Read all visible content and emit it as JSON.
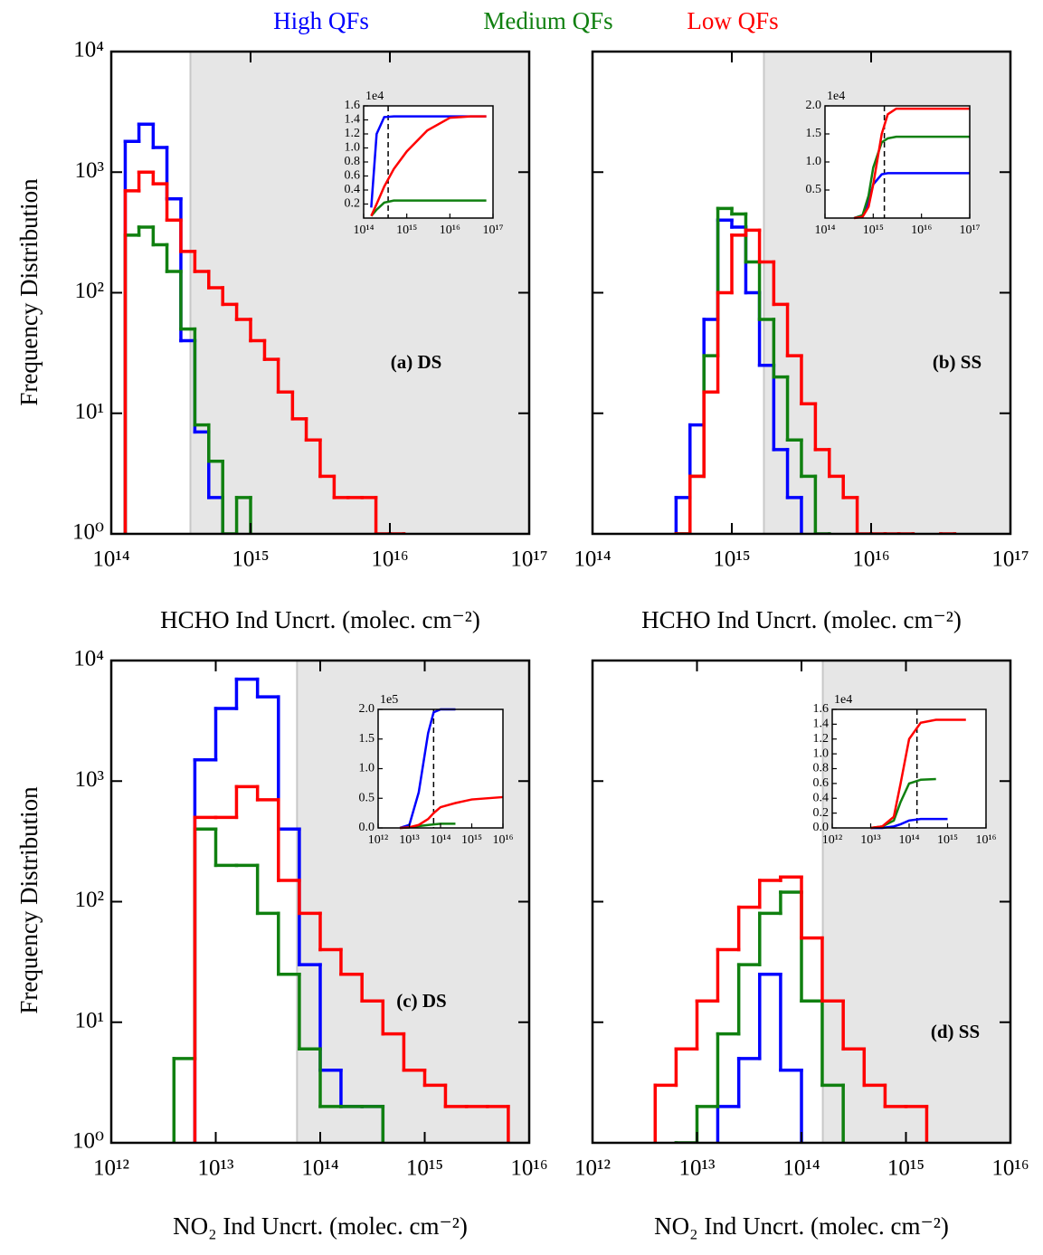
{
  "chart_data": [
    {
      "type": "histogram",
      "xscale": "log",
      "yscale": "log",
      "xlabel": "HCHO Ind Uncrt. (molec. cm⁻²)",
      "ylabel": "Frequency Distribution",
      "annotation": "(a) DS",
      "xlim": [
        100000000000000.0,
        1e+17
      ],
      "ylim": [
        1,
        10000
      ],
      "xticks": [
        {
          "value": 100000000000000.0,
          "label": "10¹⁴"
        },
        {
          "value": 1000000000000000.0,
          "label": "10¹⁵"
        },
        {
          "value": 1e+16,
          "label": "10¹⁶"
        },
        {
          "value": 1e+17,
          "label": "10¹⁷"
        }
      ],
      "yticks": [
        {
          "value": 1,
          "label": "10⁰"
        },
        {
          "value": 10,
          "label": "10¹"
        },
        {
          "value": 100,
          "label": "10²"
        },
        {
          "value": 1000,
          "label": "10³"
        },
        {
          "value": 10000,
          "label": "10⁴"
        }
      ],
      "shade_from": 370000000000000.0,
      "bins": [
        126000000000000.0,
        158000000000000.0,
        200000000000000.0,
        251000000000000.0,
        316000000000000.0,
        398000000000000.0,
        501000000000000.0,
        631000000000000.0,
        794000000000000.0,
        1000000000000000.0,
        1260000000000000.0,
        1580000000000000.0,
        2000000000000000.0,
        2510000000000000.0,
        3160000000000000.0,
        3980000000000000.0,
        5010000000000000.0,
        6310000000000000.0,
        7940000000000000.0,
        1e+16,
        1.26e+16,
        1.58e+16
      ],
      "series": [
        {
          "name": "High QFs",
          "color": "#0000ff",
          "values": [
            1800,
            2500,
            1600,
            600,
            40,
            7,
            2,
            null,
            null,
            null,
            null,
            null,
            null,
            null,
            null,
            null,
            null,
            null,
            null,
            null,
            null
          ]
        },
        {
          "name": "Medium QFs",
          "color": "#108010",
          "values": [
            300,
            350,
            250,
            150,
            50,
            8,
            4,
            1,
            2,
            null,
            null,
            null,
            null,
            null,
            null,
            null,
            null,
            null,
            null,
            null,
            null
          ]
        },
        {
          "name": "Low QFs",
          "color": "#ff0000",
          "values": [
            700,
            1000,
            800,
            400,
            220,
            150,
            110,
            80,
            60,
            40,
            28,
            15,
            9,
            6,
            3,
            2,
            2,
            2,
            1,
            1,
            null
          ]
        }
      ],
      "inset": {
        "xscale": "log",
        "xlim": [
          100000000000000.0,
          1e+17
        ],
        "ylim": [
          0,
          1.6
        ],
        "offset_label": "1e4",
        "threshold": 370000000000000.0,
        "xticks": [
          {
            "value": 100000000000000.0,
            "label": "10¹⁴"
          },
          {
            "value": 1000000000000000.0,
            "label": "10¹⁵"
          },
          {
            "value": 1e+16,
            "label": "10¹⁶"
          },
          {
            "value": 1e+17,
            "label": "10¹⁷"
          }
        ],
        "yticks": [
          0.2,
          0.4,
          0.6,
          0.8,
          {
            "value": 1,
            "label": "1.0"
          },
          1.2,
          1.4,
          1.6
        ],
        "x": [
          150000000000000.0,
          200000000000000.0,
          300000000000000.0,
          500000000000000.0,
          1000000000000000.0,
          3000000000000000.0,
          1e+16,
          3e+16,
          7e+16
        ],
        "series": [
          {
            "color": "#0000ff",
            "values": [
              0.15,
              1.2,
              1.44,
              1.45,
              1.45,
              1.45,
              1.45,
              1.45,
              1.45
            ]
          },
          {
            "color": "#108010",
            "values": [
              0.03,
              0.12,
              0.22,
              0.25,
              0.25,
              0.25,
              0.25,
              0.25,
              0.25
            ]
          },
          {
            "color": "#ff0000",
            "values": [
              0.03,
              0.2,
              0.45,
              0.7,
              0.95,
              1.25,
              1.43,
              1.45,
              1.45
            ]
          }
        ]
      }
    },
    {
      "type": "histogram",
      "xscale": "log",
      "yscale": "log",
      "xlabel": "HCHO Ind Uncrt. (molec. cm⁻²)",
      "annotation": "(b) SS",
      "xlim": [
        100000000000000.0,
        1e+17
      ],
      "ylim": [
        1,
        10000
      ],
      "xticks": [
        {
          "value": 100000000000000.0,
          "label": "10¹⁴"
        },
        {
          "value": 1000000000000000.0,
          "label": "10¹⁵"
        },
        {
          "value": 1e+16,
          "label": "10¹⁶"
        },
        {
          "value": 1e+17,
          "label": "10¹⁷"
        }
      ],
      "yticks": [
        1,
        10,
        100,
        1000,
        10000
      ],
      "show_ytick_labels": false,
      "shade_from": 1700000000000000.0,
      "bins": [
        398000000000000.0,
        501000000000000.0,
        631000000000000.0,
        794000000000000.0,
        1000000000000000.0,
        1260000000000000.0,
        1580000000000000.0,
        2000000000000000.0,
        2510000000000000.0,
        3160000000000000.0,
        3980000000000000.0,
        5010000000000000.0,
        6310000000000000.0,
        7940000000000000.0,
        1e+16,
        1.26e+16,
        1.58e+16,
        2e+16,
        2.51e+16,
        3.16e+16,
        3.98e+16
      ],
      "series": [
        {
          "name": "High QFs",
          "color": "#0000ff",
          "values": [
            2,
            8,
            60,
            400,
            350,
            100,
            25,
            5,
            2,
            null,
            null,
            null,
            null,
            null,
            null,
            null,
            null,
            null,
            null,
            null
          ]
        },
        {
          "name": "Medium QFs",
          "color": "#108010",
          "values": [
            1,
            3,
            30,
            500,
            450,
            180,
            60,
            20,
            6,
            3,
            1,
            null,
            null,
            null,
            null,
            null,
            null,
            null,
            null,
            null
          ]
        },
        {
          "name": "Low QFs",
          "color": "#ff0000",
          "values": [
            1,
            3,
            15,
            100,
            300,
            330,
            180,
            80,
            30,
            12,
            5,
            3,
            2,
            1,
            1,
            1,
            1,
            null,
            null,
            1
          ]
        }
      ],
      "inset": {
        "xscale": "log",
        "xlim": [
          100000000000000.0,
          1e+17
        ],
        "ylim": [
          0,
          2
        ],
        "offset_label": "1e4",
        "threshold": 1700000000000000.0,
        "xticks": [
          {
            "value": 100000000000000.0,
            "label": "10¹⁴"
          },
          {
            "value": 1000000000000000.0,
            "label": "10¹⁵"
          },
          {
            "value": 1e+16,
            "label": "10¹⁶"
          },
          {
            "value": 1e+17,
            "label": "10¹⁷"
          }
        ],
        "yticks": [
          0.5,
          {
            "value": 1,
            "label": "1.0"
          },
          1.5,
          {
            "value": 2,
            "label": "2.0"
          }
        ],
        "x": [
          400000000000000.0,
          600000000000000.0,
          800000000000000.0,
          1000000000000000.0,
          1500000000000000.0,
          2000000000000000.0,
          3000000000000000.0,
          1e+16,
          1e+17
        ],
        "series": [
          {
            "color": "#0000ff",
            "values": [
              0,
              0.05,
              0.3,
              0.6,
              0.78,
              0.8,
              0.8,
              0.8,
              0.8
            ]
          },
          {
            "color": "#108010",
            "values": [
              0,
              0.05,
              0.4,
              0.9,
              1.35,
              1.42,
              1.45,
              1.45,
              1.45
            ]
          },
          {
            "color": "#ff0000",
            "values": [
              0,
              0.02,
              0.2,
              0.6,
              1.5,
              1.85,
              1.95,
              1.95,
              1.95
            ]
          }
        ]
      }
    },
    {
      "type": "histogram",
      "xscale": "log",
      "yscale": "log",
      "xlabel": "NO₂ Ind Uncrt. (molec. cm⁻²)",
      "ylabel": "Frequency Distribution",
      "annotation": "(c) DS",
      "xlim": [
        1000000000000.0,
        1e+16
      ],
      "ylim": [
        1,
        10000
      ],
      "xticks": [
        {
          "value": 1000000000000.0,
          "label": "10¹²"
        },
        {
          "value": 10000000000000.0,
          "label": "10¹³"
        },
        {
          "value": 100000000000000.0,
          "label": "10¹⁴"
        },
        {
          "value": 1000000000000000.0,
          "label": "10¹⁵"
        },
        {
          "value": 1e+16,
          "label": "10¹⁶"
        }
      ],
      "yticks": [
        {
          "value": 1,
          "label": "10⁰"
        },
        {
          "value": 10,
          "label": "10¹"
        },
        {
          "value": 100,
          "label": "10²"
        },
        {
          "value": 1000,
          "label": "10³"
        },
        {
          "value": 10000,
          "label": "10⁴"
        }
      ],
      "shade_from": 60000000000000.0,
      "bins": [
        3980000000000.0,
        6310000000000.0,
        10000000000000.0,
        15800000000000.0,
        25100000000000.0,
        39800000000000.0,
        63100000000000.0,
        100000000000000.0,
        158000000000000.0,
        251000000000000.0,
        398000000000000.0,
        631000000000000.0,
        1000000000000000.0,
        1580000000000000.0,
        2510000000000000.0,
        3980000000000000.0,
        6310000000000000.0
      ],
      "series": [
        {
          "name": "High QFs",
          "color": "#0000ff",
          "values": [
            null,
            1500,
            4000,
            7000,
            5000,
            400,
            30,
            4,
            2,
            2,
            null,
            null,
            null,
            null,
            null,
            null
          ]
        },
        {
          "name": "Medium QFs",
          "color": "#108010",
          "values": [
            5,
            400,
            200,
            200,
            80,
            25,
            6,
            2,
            2,
            2,
            null,
            null,
            null,
            null,
            null,
            null
          ]
        },
        {
          "name": "Low QFs",
          "color": "#ff0000",
          "values": [
            null,
            500,
            500,
            900,
            700,
            150,
            80,
            40,
            25,
            15,
            8,
            4,
            3,
            2,
            2,
            2
          ]
        }
      ],
      "inset": {
        "xscale": "log",
        "xlim": [
          1000000000000.0,
          1e+16
        ],
        "ylim": [
          0,
          2
        ],
        "offset_label": "1e5",
        "threshold": 60000000000000.0,
        "xticks": [
          {
            "value": 1000000000000.0,
            "label": "10¹²"
          },
          {
            "value": 10000000000000.0,
            "label": "10¹³"
          },
          {
            "value": 100000000000000.0,
            "label": "10¹⁴"
          },
          {
            "value": 1000000000000000.0,
            "label": "10¹⁵"
          },
          {
            "value": 1e+16,
            "label": "10¹⁶"
          }
        ],
        "yticks": [
          {
            "value": 0,
            "label": "0.0"
          },
          0.5,
          {
            "value": 1,
            "label": "1.0"
          },
          1.5,
          {
            "value": 2,
            "label": "2.0"
          }
        ],
        "x": [
          5000000000000.0,
          10000000000000.0,
          20000000000000.0,
          40000000000000.0,
          60000000000000.0,
          100000000000000.0,
          300000000000000.0,
          1000000000000000.0,
          1e+16
        ],
        "series": [
          {
            "color": "#0000ff",
            "values": [
              0,
              0.05,
              0.6,
              1.6,
              1.95,
              2,
              2,
              null,
              null
            ]
          },
          {
            "color": "#108010",
            "values": [
              0,
              0.01,
              0.03,
              0.05,
              0.06,
              0.07,
              0.07,
              null,
              null
            ]
          },
          {
            "color": "#ff0000",
            "values": [
              0,
              0.01,
              0.05,
              0.15,
              0.25,
              0.35,
              0.42,
              0.48,
              0.52
            ]
          }
        ]
      }
    },
    {
      "type": "histogram",
      "xscale": "log",
      "yscale": "log",
      "xlabel": "NO₂ Ind Uncrt. (molec. cm⁻²)",
      "annotation": "(d) SS",
      "xlim": [
        1000000000000.0,
        1e+16
      ],
      "ylim": [
        1,
        10000
      ],
      "xticks": [
        {
          "value": 1000000000000.0,
          "label": "10¹²"
        },
        {
          "value": 10000000000000.0,
          "label": "10¹³"
        },
        {
          "value": 100000000000000.0,
          "label": "10¹⁴"
        },
        {
          "value": 1000000000000000.0,
          "label": "10¹⁵"
        },
        {
          "value": 1e+16,
          "label": "10¹⁶"
        }
      ],
      "yticks": [
        1,
        10,
        100,
        1000,
        10000
      ],
      "show_ytick_labels": false,
      "shade_from": 160000000000000.0,
      "bins": [
        3980000000000.0,
        6310000000000.0,
        10000000000000.0,
        15800000000000.0,
        25100000000000.0,
        39800000000000.0,
        63100000000000.0,
        100000000000000.0,
        158000000000000.0,
        251000000000000.0,
        398000000000000.0,
        631000000000000.0,
        1000000000000000.0,
        1580000000000000.0
      ],
      "series": [
        {
          "name": "High QFs",
          "color": "#0000ff",
          "values": [
            null,
            null,
            null,
            2,
            5,
            25,
            4,
            null,
            null,
            null,
            null,
            null,
            null
          ]
        },
        {
          "name": "Medium QFs",
          "color": "#108010",
          "values": [
            null,
            1,
            2,
            8,
            30,
            80,
            120,
            15,
            3,
            null,
            null,
            null,
            null
          ]
        },
        {
          "name": "Low QFs",
          "color": "#ff0000",
          "values": [
            3,
            6,
            15,
            40,
            90,
            150,
            160,
            50,
            15,
            6,
            3,
            2,
            2
          ]
        }
      ],
      "inset": {
        "xscale": "log",
        "xlim": [
          1000000000000.0,
          1e+16
        ],
        "ylim": [
          0,
          1.6
        ],
        "offset_label": "1e4",
        "threshold": 160000000000000.0,
        "xticks": [
          {
            "value": 1000000000000.0,
            "label": "10¹²"
          },
          {
            "value": 10000000000000.0,
            "label": "10¹³"
          },
          {
            "value": 100000000000000.0,
            "label": "10¹⁴"
          },
          {
            "value": 1000000000000000.0,
            "label": "10¹⁵"
          },
          {
            "value": 1e+16,
            "label": "10¹⁶"
          }
        ],
        "yticks": [
          {
            "value": 0,
            "label": "0.0"
          },
          0.2,
          0.4,
          0.6,
          0.8,
          {
            "value": 1,
            "label": "1.0"
          },
          1.2,
          1.4,
          1.6
        ],
        "x": [
          10000000000000.0,
          20000000000000.0,
          40000000000000.0,
          60000000000000.0,
          100000000000000.0,
          200000000000000.0,
          500000000000000.0,
          1000000000000000.0,
          3000000000000000.0
        ],
        "series": [
          {
            "color": "#0000ff",
            "values": [
              0,
              0,
              0.02,
              0.05,
              0.1,
              0.12,
              0.12,
              0.12,
              null
            ]
          },
          {
            "color": "#108010",
            "values": [
              0,
              0.02,
              0.1,
              0.35,
              0.6,
              0.65,
              0.66,
              null,
              null
            ]
          },
          {
            "color": "#ff0000",
            "values": [
              0,
              0.02,
              0.15,
              0.6,
              1.2,
              1.42,
              1.46,
              1.46,
              1.46
            ]
          }
        ]
      }
    }
  ]
}
